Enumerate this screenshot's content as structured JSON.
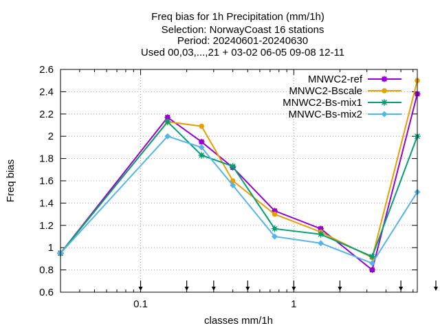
{
  "chart_data": {
    "type": "line",
    "title_lines": [
      "Freq bias  for 1h Precipitation (mm/1h)",
      "Selection: NorwayCoast     16 stations",
      "Period: 20240601-20240630",
      "Used 00,03,...,21 + 03-02 06-05 09-08 12-11"
    ],
    "xlabel": "classes mm/1h",
    "ylabel": "Freq bias",
    "x_scale": "log",
    "xlim": [
      0.03,
      6.4
    ],
    "ylim": [
      0.6,
      2.6
    ],
    "y_ticks": [
      "0.6",
      "0.8",
      "1",
      "1.2",
      "1.4",
      "1.6",
      "1.8",
      "2",
      "2.2",
      "2.4",
      "2.6"
    ],
    "x_tick_labels": [
      "0.1",
      "1"
    ],
    "class_marks": [
      0.1,
      0.2,
      0.3,
      0.5,
      1,
      2,
      5,
      10
    ],
    "grid": true,
    "legend_position": "top-right",
    "x": [
      0.03,
      0.15,
      0.25,
      0.4,
      0.75,
      1.5,
      3.25,
      6.4
    ],
    "series": [
      {
        "name": "MNWC2-ref",
        "color": "#9400d3",
        "marker": "cross-square",
        "values": [
          0.95,
          2.17,
          1.95,
          1.72,
          1.33,
          1.17,
          0.8,
          2.38
        ]
      },
      {
        "name": "MNWC2-Bscale",
        "color": "#e69f00",
        "marker": "circle",
        "values": [
          0.95,
          2.13,
          2.09,
          1.6,
          1.3,
          1.14,
          0.91,
          2.5
        ]
      },
      {
        "name": "MNWC2-Bs-mix1",
        "color": "#009e73",
        "marker": "star",
        "values": [
          0.95,
          2.13,
          1.83,
          1.73,
          1.17,
          1.12,
          0.92,
          2.0
        ]
      },
      {
        "name": "MNWC-Bs-mix2",
        "color": "#56b4e9",
        "marker": "diamond",
        "values": [
          0.95,
          2.0,
          1.9,
          1.56,
          1.1,
          1.04,
          0.86,
          1.5
        ]
      }
    ]
  }
}
